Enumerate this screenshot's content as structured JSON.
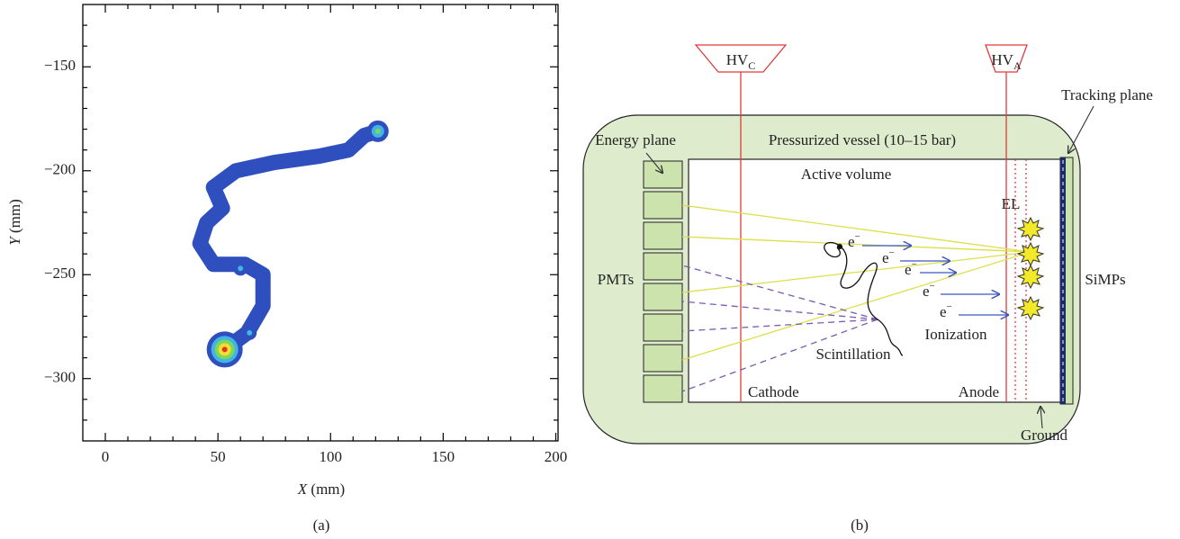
{
  "chart_data": {
    "type": "line",
    "xlabel": {
      "var": "X",
      "unit": "(mm)"
    },
    "ylabel": {
      "var": "Y",
      "unit": "(mm)"
    },
    "xlim": [
      -10,
      201
    ],
    "ylim": [
      -330,
      -120
    ],
    "xticks": [
      0,
      50,
      100,
      150,
      200
    ],
    "yticks": [
      {
        "value": -150,
        "label": "−150"
      },
      {
        "value": -200,
        "label": "−200"
      },
      {
        "value": -250,
        "label": "−250"
      },
      {
        "value": -300,
        "label": "−300"
      }
    ],
    "xminorticks": [
      10,
      20,
      30,
      40,
      60,
      70,
      80,
      90,
      110,
      120,
      130,
      140,
      160,
      170,
      180,
      190
    ],
    "yminorticks": [
      -130,
      -140,
      -160,
      -170,
      -180,
      -190,
      -210,
      -220,
      -230,
      -240,
      -260,
      -270,
      -280,
      -290,
      -310,
      -320
    ],
    "track": {
      "color": "#2f4fbf",
      "x": [
        53,
        63,
        70,
        70,
        62,
        48,
        42,
        45,
        52,
        48,
        58,
        75,
        95,
        108,
        115,
        121
      ],
      "y": [
        -286,
        -278,
        -265,
        -250,
        -245,
        -245,
        -235,
        -225,
        -218,
        -208,
        -200,
        -196,
        -193,
        -190,
        -183,
        -181
      ]
    },
    "hotspots": [
      {
        "x": 53,
        "y": -286,
        "colors": [
          "#3fb6e6",
          "#7fd65a",
          "#f0e030",
          "#e5341f"
        ]
      },
      {
        "x": 121,
        "y": -181,
        "colors": [
          "#3fb6e6",
          "#7fd65a"
        ]
      },
      {
        "x": 64,
        "y": -278,
        "colors": [
          "#3fb6e6"
        ]
      },
      {
        "x": 60,
        "y": -247,
        "colors": [
          "#3fb6e6"
        ]
      }
    ]
  },
  "caption_a": "(a)",
  "caption_b": "(b)",
  "diagram": {
    "hv_c": {
      "main": "HV",
      "sub": "C"
    },
    "hv_a": {
      "main": "HV",
      "sub": "A"
    },
    "energy_plane": "Energy plane",
    "tracking_plane": "Tracking plane",
    "vessel": "Pressurized vessel (10–15 bar)",
    "active_volume": "Active volume",
    "el": "EL",
    "pmts": "PMTs",
    "simps": "SiMPs",
    "ionization": "Ionization",
    "scintillation": "Scintillation",
    "cathode": "Cathode",
    "anode": "Anode",
    "ground": "Ground",
    "electron": {
      "main": "e",
      "sup": "−"
    }
  }
}
